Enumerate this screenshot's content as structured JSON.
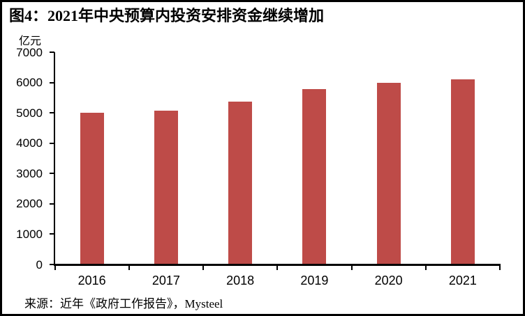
{
  "figure": {
    "title": "图4：2021年中央预算内投资安排资金继续增加",
    "unit_label": "亿元",
    "source": "来源：近年《政府工作报告》，Mysteel"
  },
  "colors": {
    "bar": "#BE4B48",
    "axis": "#000000",
    "text": "#000000",
    "background": "#FFFFFF",
    "frame_border": "#000000"
  },
  "chart_data": {
    "type": "bar",
    "categories": [
      "2016",
      "2017",
      "2018",
      "2019",
      "2020",
      "2021"
    ],
    "values": [
      5000,
      5076,
      5376,
      5776,
      6000,
      6100
    ],
    "title": "图4：2021年中央预算内投资安排资金继续增加",
    "xlabel": "",
    "ylabel": "亿元",
    "ylim": [
      0,
      7000
    ],
    "ytick_step": 1000,
    "ytick_labels": [
      "0",
      "1000",
      "2000",
      "3000",
      "4000",
      "5000",
      "6000",
      "7000"
    ],
    "grid": false,
    "legend": false,
    "source": "来源：近年《政府工作报告》，Mysteel"
  }
}
